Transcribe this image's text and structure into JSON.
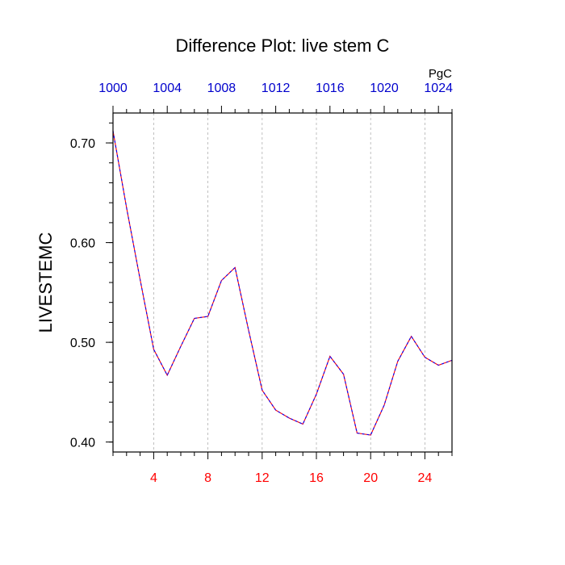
{
  "chart_data": {
    "type": "line",
    "title": "Difference Plot: live stem C",
    "ylabel": "LIVESTEMC",
    "top_axis_units": "PgC",
    "x_bottom": {
      "lim": [
        1,
        26
      ],
      "ticks": [
        4,
        8,
        12,
        16,
        20,
        24
      ],
      "minor_step": 1,
      "label_color": "#ff0000"
    },
    "x_top": {
      "lim": [
        1000,
        1025
      ],
      "ticks": [
        1000,
        1004,
        1008,
        1012,
        1016,
        1020,
        1024
      ],
      "minor_step": 1,
      "label_color": "#0000cc"
    },
    "y": {
      "lim": [
        0.39,
        0.73
      ],
      "ticks": [
        0.4,
        0.5,
        0.6,
        0.7
      ],
      "tick_labels": [
        "0.40",
        "0.50",
        "0.60",
        "0.70"
      ],
      "minor_step": 0.02
    },
    "grid": "vertical-dashed",
    "series": [
      {
        "color_a": "#ff0000",
        "color_b": "#0000ff",
        "style": "dashed",
        "x": [
          1,
          2,
          3,
          4,
          5,
          6,
          7,
          8,
          9,
          10,
          11,
          12,
          13,
          14,
          15,
          16,
          17,
          18,
          19,
          20,
          21,
          22,
          23,
          24,
          25,
          26
        ],
        "y": [
          0.712,
          0.635,
          0.563,
          0.493,
          0.467,
          0.496,
          0.524,
          0.526,
          0.562,
          0.575,
          0.512,
          0.452,
          0.432,
          0.424,
          0.418,
          0.448,
          0.486,
          0.468,
          0.409,
          0.407,
          0.437,
          0.481,
          0.506,
          0.485,
          0.477,
          0.482
        ]
      }
    ]
  }
}
